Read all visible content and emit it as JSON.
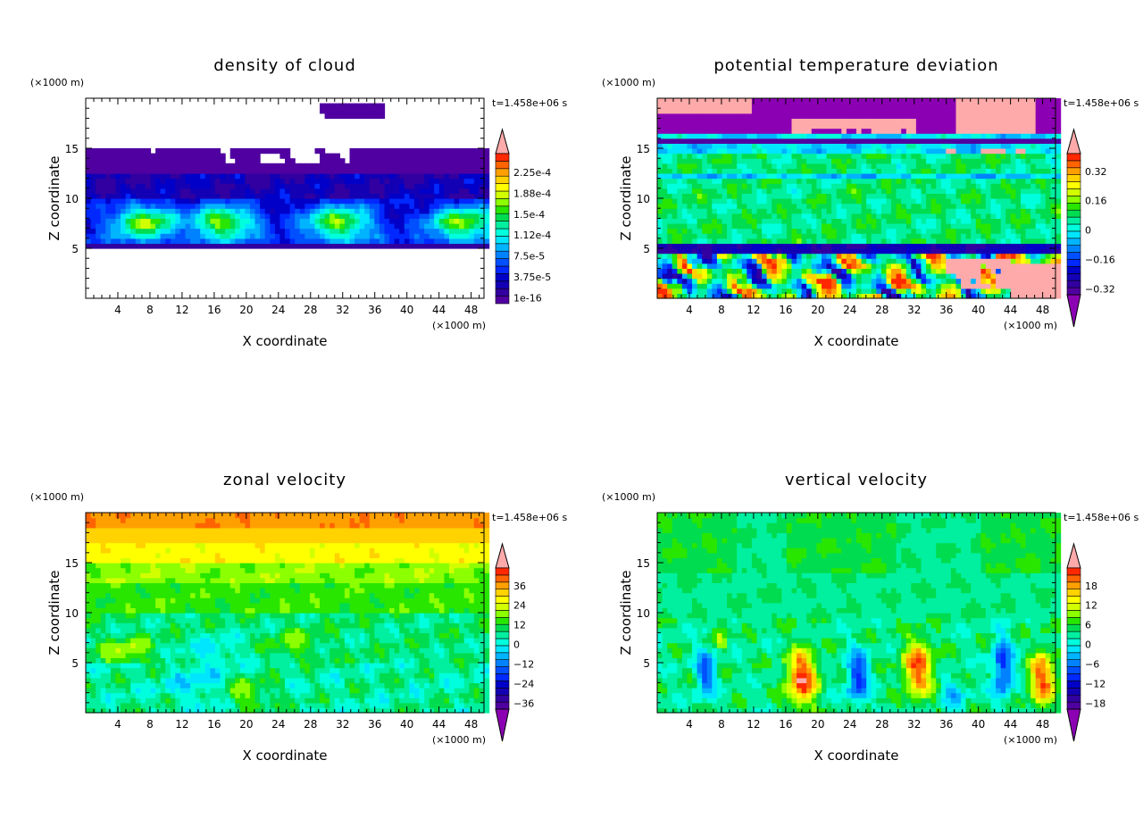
{
  "time_label": "t=1.458e+06 s",
  "unit_label": "(×1000 m)",
  "colors": {
    "palette": [
      "#5000a0",
      "#3200a0",
      "#1400b4",
      "#0000c8",
      "#0028ff",
      "#0050ff",
      "#0082ff",
      "#00b4ff",
      "#00e6ff",
      "#00ffdc",
      "#00f0a0",
      "#00dc50",
      "#28e600",
      "#8cff00",
      "#d2ff00",
      "#ffff00",
      "#ffd200",
      "#ffa000",
      "#ff6400",
      "#ff2800"
    ],
    "over": "#ffaaaa",
    "under": "#8c00b4"
  },
  "chart_data": [
    {
      "type": "heatmap",
      "title": "density of cloud",
      "xlabel": "X coordinate",
      "ylabel": "Z coordinate",
      "xlim": [
        0,
        49.6
      ],
      "ylim": [
        0,
        20
      ],
      "xticks": [
        "4",
        "8",
        "12",
        "16",
        "20",
        "24",
        "28",
        "32",
        "36",
        "40",
        "44",
        "48"
      ],
      "yticks": [
        "5",
        "10",
        "15"
      ],
      "colorbar_labels": [
        "2.25e-4",
        "1.88e-4",
        "1.5e-4",
        "1.12e-4",
        "7.5e-5",
        "3.75e-5",
        "1e-16"
      ],
      "colorbar_over": true,
      "colorbar_under": false
    },
    {
      "type": "heatmap",
      "title": "potential temperature deviation",
      "xlabel": "X coordinate",
      "ylabel": "Z coordinate",
      "xlim": [
        0,
        49.6
      ],
      "ylim": [
        0,
        20
      ],
      "xticks": [
        "4",
        "8",
        "12",
        "16",
        "20",
        "24",
        "28",
        "32",
        "36",
        "40",
        "44",
        "48"
      ],
      "yticks": [
        "5",
        "10",
        "15"
      ],
      "colorbar_labels": [
        "0.32",
        "0.16",
        "0",
        "−0.16",
        "−0.32"
      ],
      "colorbar_over": true,
      "colorbar_under": true
    },
    {
      "type": "heatmap",
      "title": "zonal velocity",
      "xlabel": "X coordinate",
      "ylabel": "Z coordinate",
      "xlim": [
        0,
        49.6
      ],
      "ylim": [
        0,
        20
      ],
      "xticks": [
        "4",
        "8",
        "12",
        "16",
        "20",
        "24",
        "28",
        "32",
        "36",
        "40",
        "44",
        "48"
      ],
      "yticks": [
        "5",
        "10",
        "15"
      ],
      "colorbar_labels": [
        "36",
        "24",
        "12",
        "0",
        "−12",
        "−24",
        "−36"
      ],
      "colorbar_over": true,
      "colorbar_under": true
    },
    {
      "type": "heatmap",
      "title": "vertical velocity",
      "xlabel": "X coordinate",
      "ylabel": "Z coordinate",
      "xlim": [
        0,
        49.6
      ],
      "ylim": [
        0,
        20
      ],
      "xticks": [
        "4",
        "8",
        "12",
        "16",
        "20",
        "24",
        "28",
        "32",
        "36",
        "40",
        "44",
        "48"
      ],
      "yticks": [
        "5",
        "10",
        "15"
      ],
      "colorbar_labels": [
        "18",
        "12",
        "6",
        "0",
        "−6",
        "−12",
        "−18"
      ],
      "colorbar_over": true,
      "colorbar_under": true
    }
  ]
}
